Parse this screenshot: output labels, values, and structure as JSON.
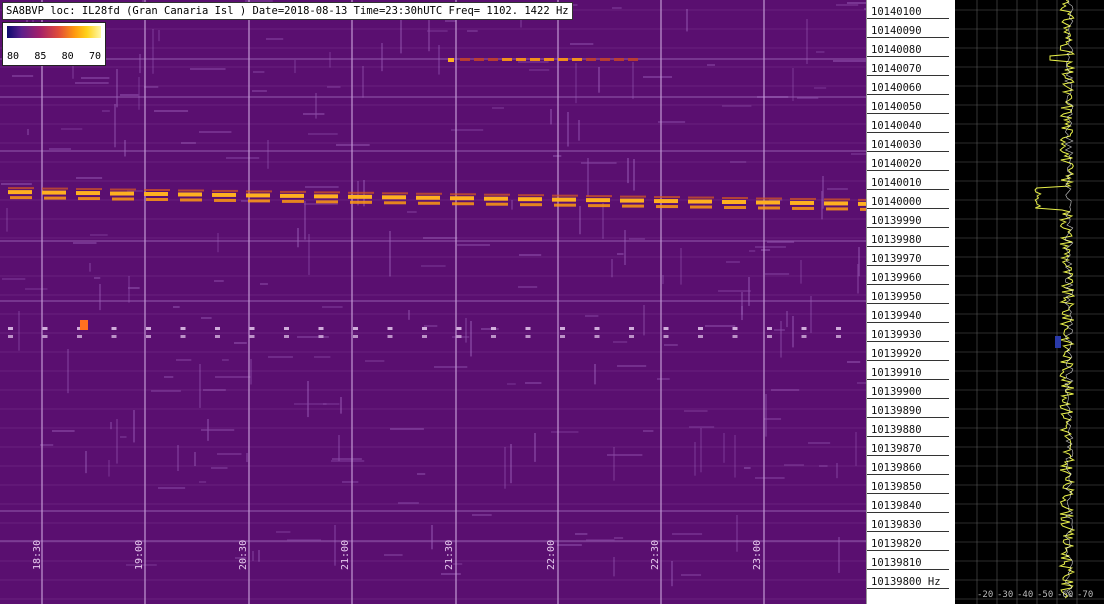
{
  "header": {
    "title": "SA8BVP loc: IL28fd (Gran Canaria Isl ) Date=2018-08-13 Time=23:30hUTC Freq= 1102.  1422 Hz"
  },
  "colorscale": {
    "labels": [
      "80",
      "85",
      "80",
      "70"
    ]
  },
  "time_axis": [
    "18:30",
    "19:00",
    "20:30",
    "21:00",
    "21:30",
    "22:00",
    "22:30",
    "23:00"
  ],
  "frequency_axis": [
    "10140100",
    "10140090",
    "10140080",
    "10140070",
    "10140060",
    "10140050",
    "10140040",
    "10140030",
    "10140020",
    "10140010",
    "10140000",
    "10139990",
    "10139980",
    "10139970",
    "10139960",
    "10139950",
    "10139940",
    "10139930",
    "10139920",
    "10139910",
    "10139900",
    "10139890",
    "10139880",
    "10139870",
    "10139860",
    "10139850",
    "10139840",
    "10139830",
    "10139820",
    "10139810",
    "10139800 Hz"
  ],
  "spectrum": {
    "labels": [
      "-20",
      "-30",
      "-40",
      "-50",
      "-60",
      "-70"
    ]
  },
  "colors": {
    "waterfall_bg": "#5a0f70",
    "signal": "#ffb020",
    "grid": "#c49ad6",
    "spectrum_trace": "#e8f04a"
  }
}
